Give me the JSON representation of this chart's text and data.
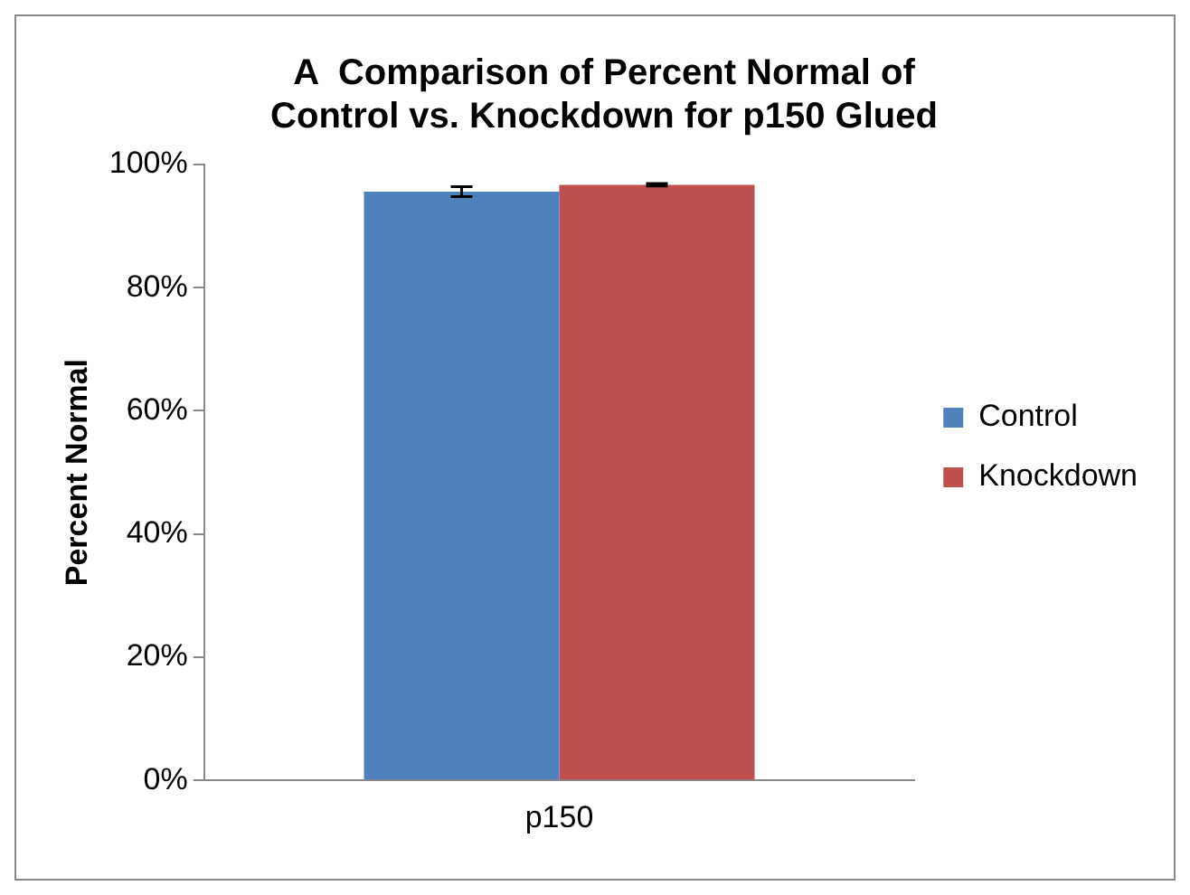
{
  "chart_data": {
    "type": "bar",
    "title": "A  Comparison of Percent Normal of\nControl vs. Knockdown for p150 Glued",
    "ylabel": "Percent Normal",
    "categories": [
      "p150"
    ],
    "series": [
      {
        "name": "Control",
        "color": "#4f81bd",
        "values": [
          95.6
        ],
        "errors": [
          0.8
        ]
      },
      {
        "name": "Knockdown",
        "color": "#c0504d",
        "values": [
          96.7
        ],
        "errors": [
          0.2
        ]
      }
    ],
    "ylim": [
      0,
      100
    ],
    "yticks": [
      {
        "value": 0,
        "label": "0%"
      },
      {
        "value": 20,
        "label": "20%"
      },
      {
        "value": 40,
        "label": "40%"
      },
      {
        "value": 60,
        "label": "60%"
      },
      {
        "value": 80,
        "label": "80%"
      },
      {
        "value": 100,
        "label": "100%"
      }
    ],
    "grid": false,
    "legend": "right"
  }
}
